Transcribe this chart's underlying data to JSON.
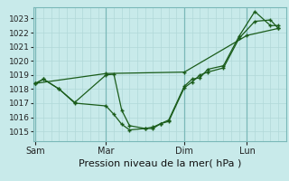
{
  "title": "Pression niveau de la mer( hPa )",
  "bg_color": "#c8eaea",
  "grid_color_minor": "#b0d8d8",
  "grid_color_major": "#90c0c0",
  "line_color": "#1a5c1a",
  "ylim": [
    1014.3,
    1023.8
  ],
  "yticks": [
    1015,
    1016,
    1017,
    1018,
    1019,
    1020,
    1021,
    1022,
    1023
  ],
  "xtick_labels": [
    "Sam",
    "Mar",
    "Dim",
    "Lun"
  ],
  "xtick_pos": [
    0,
    9,
    19,
    27
  ],
  "vlines_dark": [
    0,
    9,
    19,
    27
  ],
  "xlim": [
    -0.3,
    32
  ],
  "line1_x": [
    0,
    1,
    3,
    5,
    9,
    10,
    11,
    12,
    14,
    15,
    16,
    17,
    19,
    20,
    21,
    22,
    24,
    26,
    28,
    30,
    31
  ],
  "line1_y": [
    1018.4,
    1018.7,
    1018.0,
    1017.0,
    1016.8,
    1016.2,
    1015.5,
    1015.1,
    1015.2,
    1015.3,
    1015.55,
    1015.7,
    1018.1,
    1018.5,
    1019.0,
    1019.2,
    1019.5,
    1021.6,
    1022.8,
    1022.9,
    1022.3
  ],
  "line2_x": [
    0,
    1,
    3,
    5,
    9,
    10,
    11,
    12,
    14,
    15,
    16,
    17,
    19,
    20,
    21,
    22,
    24,
    26,
    28,
    30,
    31
  ],
  "line2_y": [
    1018.4,
    1018.7,
    1018.0,
    1017.05,
    1019.0,
    1019.05,
    1016.5,
    1015.4,
    1015.2,
    1015.2,
    1015.55,
    1015.8,
    1018.2,
    1018.7,
    1018.8,
    1019.4,
    1019.65,
    1021.75,
    1023.5,
    1022.5,
    1022.5
  ],
  "line3_x": [
    0,
    9,
    19,
    27,
    31
  ],
  "line3_y": [
    1018.4,
    1019.1,
    1019.2,
    1021.8,
    1022.3
  ],
  "xlabel_fontsize": 8,
  "ytick_fontsize": 6.5,
  "xtick_fontsize": 7
}
